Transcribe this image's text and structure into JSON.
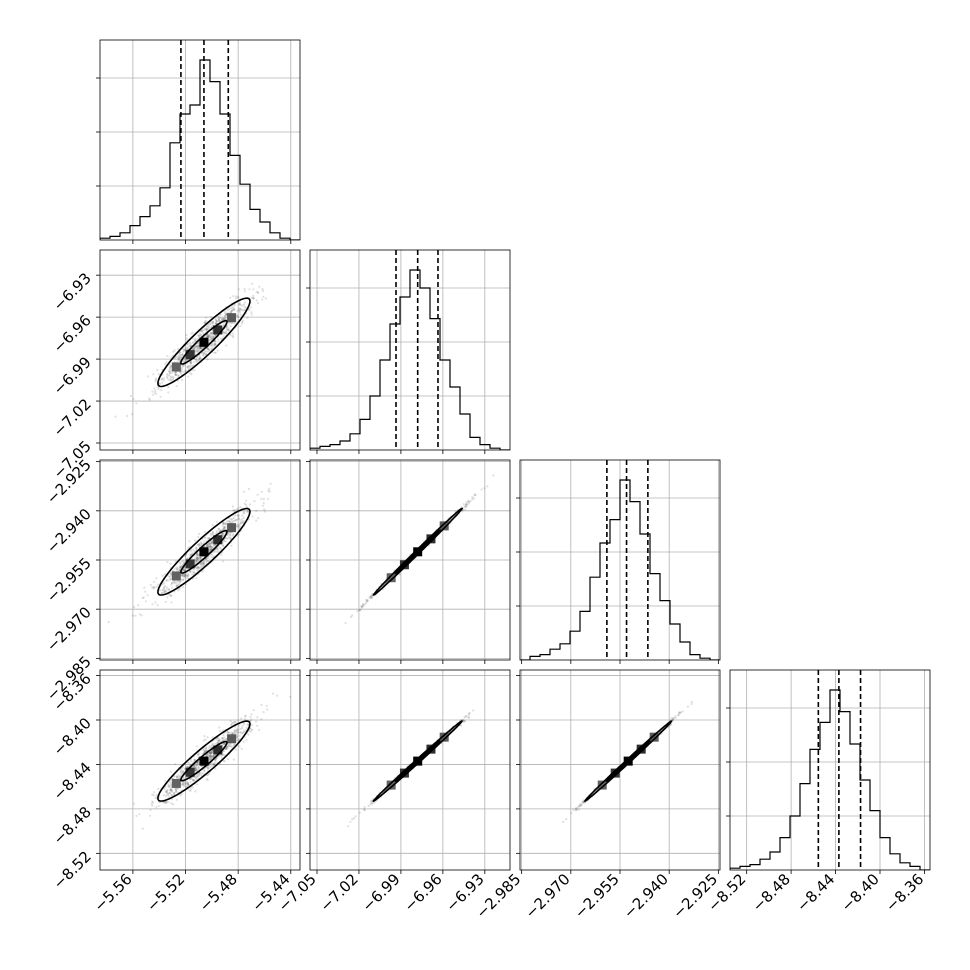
{
  "chart_data": {
    "type": "corner",
    "params": [
      {
        "ticks": [
          "−5.56",
          "−5.52",
          "−5.48",
          "−5.44"
        ],
        "tick_values": [
          -5.56,
          -5.52,
          -5.48,
          -5.44
        ],
        "range": [
          -5.585,
          -5.433
        ],
        "mean": -5.506,
        "sd": 0.0175,
        "q16": -5.5235,
        "q50": -5.506,
        "q84": -5.4875
      },
      {
        "ticks": [
          "−7.05",
          "−7.02",
          "−6.99",
          "−6.96",
          "−6.93"
        ],
        "tick_values": [
          -7.05,
          -7.02,
          -6.99,
          -6.96,
          -6.93
        ],
        "range": [
          -7.055,
          -6.912
        ],
        "mean": -6.978,
        "sd": 0.0158,
        "q16": -6.9935,
        "q50": -6.978,
        "q84": -6.9635
      },
      {
        "ticks": [
          "−2.985",
          "−2.970",
          "−2.955",
          "−2.940",
          "−2.925"
        ],
        "tick_values": [
          -2.985,
          -2.97,
          -2.955,
          -2.94,
          -2.925
        ],
        "range": [
          -2.9855,
          -2.9245
        ],
        "mean": -2.9525,
        "sd": 0.0066,
        "q16": -2.959,
        "q50": -2.953,
        "q84": -2.9465
      },
      {
        "ticks": [
          "−8.52",
          "−8.48",
          "−8.44",
          "−8.40",
          "−8.36"
        ],
        "tick_values": [
          -8.52,
          -8.48,
          -8.44,
          -8.4,
          -8.36
        ],
        "range": [
          -8.535,
          -8.355
        ],
        "mean": -8.437,
        "sd": 0.018,
        "q16": -8.4555,
        "q50": -8.437,
        "q84": -8.4175
      }
    ],
    "histogram_bins": 20,
    "histograms": [
      [
        1,
        2,
        4,
        8,
        13,
        19,
        29,
        54,
        70,
        75,
        100,
        88,
        70,
        47,
        31,
        17,
        10,
        4,
        1,
        0
      ],
      [
        1,
        2,
        3,
        5,
        9,
        17,
        30,
        50,
        70,
        85,
        100,
        90,
        73,
        50,
        35,
        20,
        7,
        3,
        1,
        0
      ],
      [
        0,
        2,
        3,
        6,
        9,
        16,
        27,
        46,
        65,
        78,
        100,
        88,
        70,
        48,
        33,
        20,
        10,
        3,
        1,
        0
      ],
      [
        1,
        2,
        3,
        6,
        10,
        18,
        30,
        48,
        67,
        82,
        100,
        88,
        70,
        50,
        33,
        18,
        9,
        4,
        2,
        0
      ]
    ],
    "contour_levels": [
      "1σ",
      "2σ"
    ],
    "grid": true
  }
}
